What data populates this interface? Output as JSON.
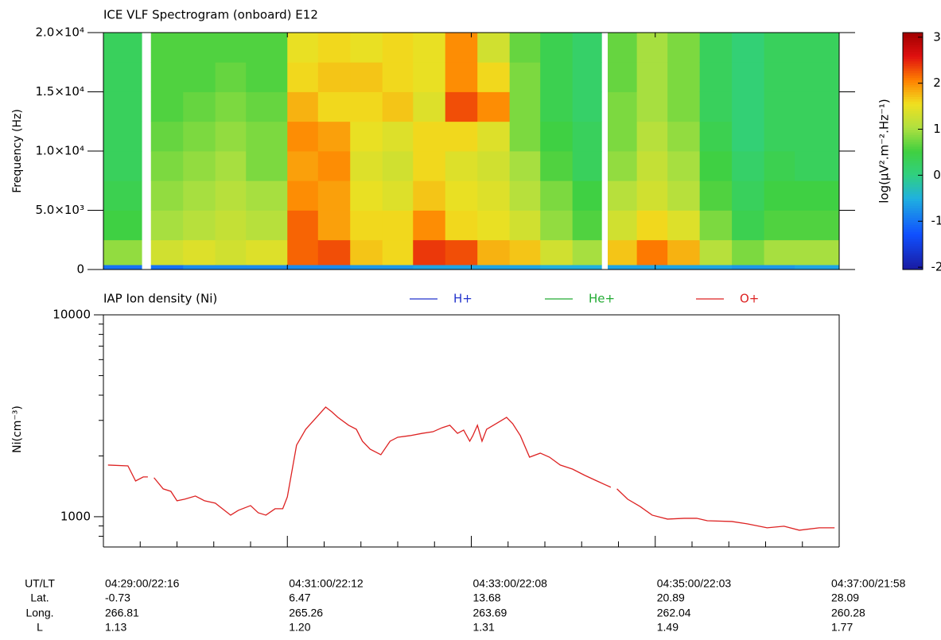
{
  "chart_data": [
    {
      "type": "heatmap",
      "title": "ICE VLF Spectrogram (onboard) E12",
      "ylabel": "Frequency (Hz)",
      "colorbar_label": "log(μV².m⁻².Hz⁻¹)",
      "x_edges": [
        "04:29:00",
        "04:29:25",
        "04:29:31",
        "04:29:52",
        "04:30:13",
        "04:30:33",
        "04:31:00",
        "04:31:20",
        "04:31:41",
        "04:32:02",
        "04:32:22",
        "04:32:43",
        "04:33:04",
        "04:33:25",
        "04:33:45",
        "04:34:06",
        "04:34:25",
        "04:34:29",
        "04:34:48",
        "04:35:08",
        "04:35:29",
        "04:35:50",
        "04:36:11",
        "04:36:31",
        "04:37:00"
      ],
      "y_edges": [
        0,
        400,
        2500,
        5000,
        7500,
        10000,
        12500,
        15000,
        17500,
        20000
      ],
      "z": [
        [
          -1,
          0.9,
          0.5,
          0.4,
          0.3,
          0.3,
          0.3,
          0.3,
          0.3
        ],
        [
          null,
          null,
          null,
          null,
          null,
          null,
          null,
          null,
          null
        ],
        [
          -1,
          1.3,
          1.0,
          0.9,
          0.8,
          0.7,
          0.6,
          0.6,
          0.6
        ],
        [
          -0.8,
          1.4,
          1.1,
          1.0,
          0.9,
          0.8,
          0.7,
          0.6,
          0.6
        ],
        [
          -0.8,
          1.3,
          1.2,
          1.1,
          1.0,
          0.9,
          0.8,
          0.7,
          0.6
        ],
        [
          -0.8,
          1.4,
          1.1,
          1.0,
          0.8,
          0.8,
          0.7,
          0.6,
          0.6
        ],
        [
          -0.8,
          2.2,
          2.2,
          2.0,
          1.9,
          2.0,
          1.8,
          1.6,
          1.5
        ],
        [
          -0.8,
          2.3,
          1.9,
          1.9,
          2.0,
          1.9,
          1.6,
          1.7,
          1.6
        ],
        [
          -0.7,
          1.7,
          1.6,
          1.5,
          1.4,
          1.5,
          1.6,
          1.7,
          1.5
        ],
        [
          -0.7,
          1.6,
          1.6,
          1.4,
          1.3,
          1.4,
          1.7,
          1.6,
          1.6
        ],
        [
          -0.6,
          2.4,
          2.0,
          1.7,
          1.6,
          1.6,
          1.4,
          1.5,
          1.5
        ],
        [
          -0.6,
          2.3,
          1.6,
          1.5,
          1.4,
          1.6,
          2.3,
          2.0,
          2.0
        ],
        [
          -0.6,
          1.8,
          1.5,
          1.4,
          1.3,
          1.4,
          2.0,
          1.6,
          1.3
        ],
        [
          -0.6,
          1.7,
          1.3,
          1.1,
          1.0,
          0.8,
          0.8,
          0.8,
          0.7
        ],
        [
          -0.5,
          1.3,
          0.9,
          0.8,
          0.6,
          0.5,
          0.4,
          0.4,
          0.4
        ],
        [
          -0.5,
          1.0,
          0.6,
          0.5,
          0.3,
          0.3,
          0.2,
          0.2,
          0.2
        ],
        [
          null,
          null,
          null,
          null,
          null,
          null,
          null,
          null,
          null
        ],
        [
          -0.6,
          1.7,
          1.3,
          1.1,
          0.9,
          0.8,
          0.8,
          0.7,
          0.7
        ],
        [
          -0.6,
          2.1,
          1.6,
          1.3,
          1.2,
          1.1,
          1.0,
          1.0,
          1.0
        ],
        [
          -0.6,
          1.8,
          1.4,
          1.1,
          1.0,
          0.9,
          0.8,
          0.8,
          0.8
        ],
        [
          -0.6,
          1.1,
          0.8,
          0.6,
          0.5,
          0.4,
          0.3,
          0.3,
          0.3
        ],
        [
          -0.7,
          0.8,
          0.4,
          0.3,
          0.2,
          0.1,
          0.1,
          0.1,
          0.1
        ],
        [
          -0.7,
          1.0,
          0.6,
          0.5,
          0.4,
          0.3,
          0.3,
          0.3,
          0.3
        ],
        [
          -0.6,
          1.0,
          0.6,
          0.5,
          0.3,
          0.3,
          0.3,
          0.3,
          0.3
        ]
      ],
      "xlim": [
        "04:29:00",
        "04:37:00"
      ],
      "xticks": [
        "04:29:00",
        "04:31:00",
        "04:33:00",
        "04:35:00",
        "04:37:00"
      ],
      "ylim": [
        0,
        20000
      ],
      "yticks": [
        0,
        {
          "value": 5000,
          "label": "5.0×10³"
        },
        {
          "value": 10000,
          "label": "1.0×10⁴"
        },
        {
          "value": 15000,
          "label": "1.5×10⁴"
        },
        {
          "value": 20000,
          "label": "2.0×10⁴"
        }
      ],
      "clim": [
        -2.05,
        3.1
      ],
      "cticks": [
        -2,
        -1,
        0,
        1,
        2,
        3
      ],
      "colormap": "rainbow"
    },
    {
      "type": "line",
      "title": "IAP Ion density (Ni)",
      "ylabel": "Ni(cm⁻³)",
      "log_y": true,
      "x": [
        "04:29:03",
        "04:29:16",
        "04:29:21",
        "04:29:26",
        "04:29:29",
        "04:29:31",
        "04:29:33",
        "04:29:39",
        "04:29:44",
        "04:29:48",
        "04:29:53",
        "04:30:00",
        "04:30:06",
        "04:30:13",
        "04:30:23",
        "04:30:28",
        "04:30:36",
        "04:30:41",
        "04:30:46",
        "04:30:52",
        "04:30:57",
        "04:31:00",
        "04:31:06",
        "04:31:12",
        "04:31:19",
        "04:31:25",
        "04:31:29",
        "04:31:33",
        "04:31:40",
        "04:31:45",
        "04:31:49",
        "04:31:54",
        "04:32:01",
        "04:32:07",
        "04:32:12",
        "04:32:20",
        "04:32:28",
        "04:32:35",
        "04:32:41",
        "04:32:46",
        "04:32:51",
        "04:32:55",
        "04:32:59",
        "04:33:01",
        "04:33:04",
        "04:33:07",
        "04:33:10",
        "04:33:17",
        "04:33:23",
        "04:33:27",
        "04:33:32",
        "04:33:38",
        "04:33:45",
        "04:33:51",
        "04:33:58",
        "04:34:06",
        "04:34:14",
        "04:34:22",
        "04:34:31",
        "04:34:33",
        "04:34:35",
        "04:34:42",
        "04:34:50",
        "04:34:58",
        "04:35:08",
        "04:35:19",
        "04:35:27",
        "04:35:34",
        "04:35:50",
        "04:36:00",
        "04:36:13",
        "04:36:24",
        "04:36:34",
        "04:36:47",
        "04:36:57"
      ],
      "series": [
        {
          "name": "H+",
          "color": "#2233cc"
        },
        {
          "name": "He+",
          "color": "#22aa33"
        },
        {
          "name": "O+",
          "color": "#dd2222",
          "values": [
            1803,
            1786,
            1503,
            1574,
            1574,
            null,
            1560,
            1374,
            1336,
            1199,
            1221,
            1266,
            1199,
            1167,
            1018,
            1075,
            1135,
            1046,
            1018,
            1095,
            1095,
            1254,
            2261,
            2712,
            3105,
            3492,
            3309,
            3105,
            2838,
            2712,
            2366,
            2161,
            2028,
            2366,
            2475,
            2521,
            2588,
            2636,
            2760,
            2838,
            2588,
            2686,
            2366,
            2521,
            2838,
            2366,
            2712,
            2915,
            3105,
            2890,
            2521,
            1972,
            2065,
            1972,
            1803,
            1722,
            1603,
            1503,
            1399,
            null,
            1374,
            1221,
            1125,
            1018,
            973,
            982,
            982,
            955,
            947,
            922,
            881,
            897,
            857,
            881,
            881
          ]
        }
      ],
      "xlim": [
        "04:29:00",
        "04:37:00"
      ],
      "xticks": [
        {
          "value": "04:29:00",
          "label": "04:29:00/22:16"
        },
        {
          "value": "04:31:00",
          "label": "04:31:00/22:12"
        },
        {
          "value": "04:33:00",
          "label": "04:33:00/22:08"
        },
        {
          "value": "04:35:00",
          "label": "04:35:00/22:03"
        },
        {
          "value": "04:37:00",
          "label": "04:37:00/21:58"
        }
      ],
      "x_minor_divisions": 5,
      "ylim": [
        708,
        10000
      ],
      "yticks": [
        1000,
        10000
      ]
    }
  ],
  "ephemeris": {
    "row_labels": [
      "UT/LT",
      "Lat.",
      "Long.",
      "L"
    ],
    "lat": [
      "-0.73",
      "6.47",
      "13.68",
      "20.89",
      "28.09"
    ],
    "long": [
      "266.81",
      "265.26",
      "263.69",
      "262.04",
      "260.28"
    ],
    "L": [
      "1.13",
      "1.20",
      "1.31",
      "1.49",
      "1.77"
    ]
  }
}
